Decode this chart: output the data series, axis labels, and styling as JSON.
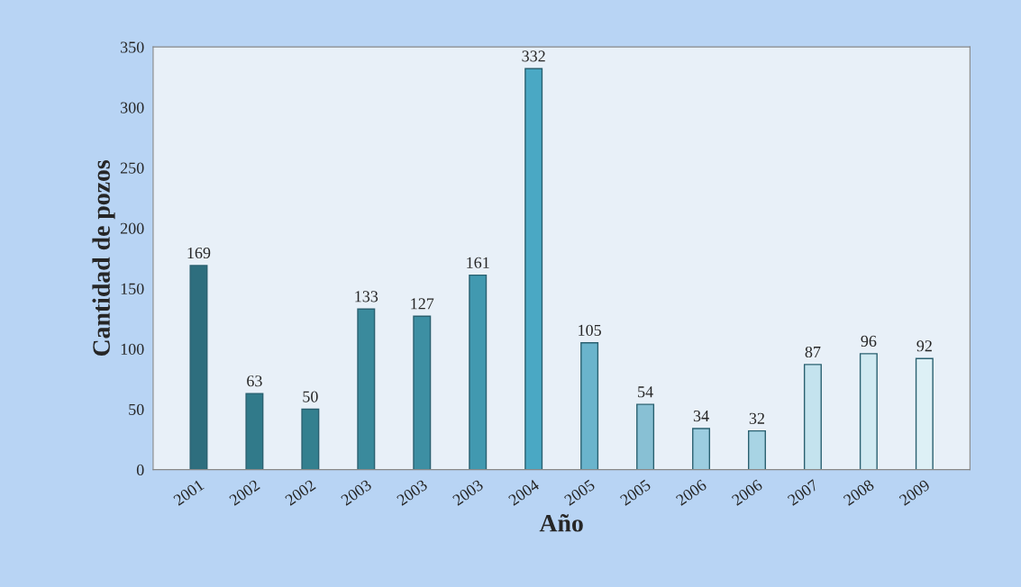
{
  "chart_data": {
    "type": "bar",
    "xlabel": "Año",
    "ylabel": "Cantidad de pozos",
    "categories": [
      "2001",
      "2002",
      "2002",
      "2003",
      "2003",
      "2003",
      "2004",
      "2005",
      "2005",
      "2006",
      "2006",
      "2007",
      "2008",
      "2009"
    ],
    "values": [
      169,
      63,
      50,
      133,
      127,
      161,
      332,
      105,
      54,
      34,
      32,
      87,
      96,
      92
    ],
    "colors": [
      "#2e6e7e",
      "#317a8a",
      "#34808f",
      "#3a8a9c",
      "#3d8fa3",
      "#4199b0",
      "#4aa8c4",
      "#6ab4cc",
      "#88c0d4",
      "#9ccde0",
      "#a8d4e4",
      "#c4e3ee",
      "#d0eaf2",
      "#ddf0f6"
    ],
    "ylim": [
      0,
      350
    ],
    "yticks": [
      0,
      50,
      100,
      150,
      200,
      250,
      300,
      350
    ],
    "grid": false,
    "data_labels": true
  }
}
